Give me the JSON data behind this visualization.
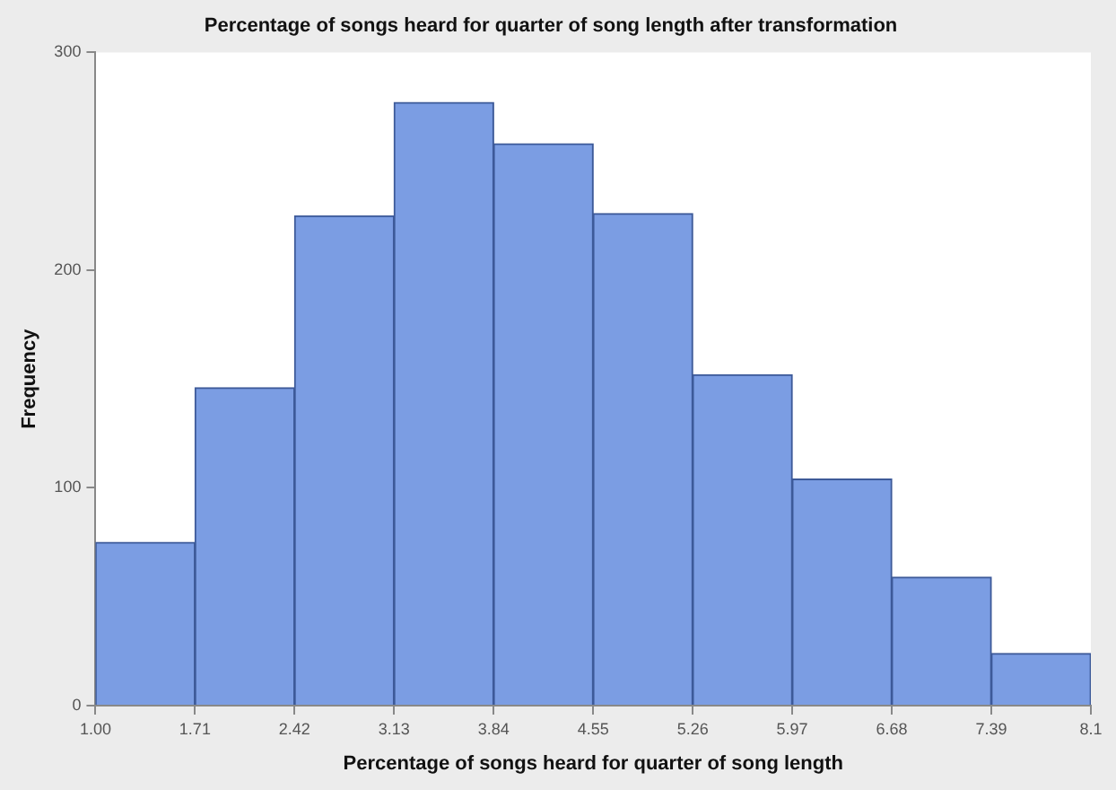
{
  "chart_data": {
    "type": "histogram",
    "title": "Percentage of songs heard for quarter of song length after transformation",
    "xlabel": "Percentage of songs heard for quarter of song length",
    "ylabel": "Frequency",
    "bins": [
      1.0,
      1.71,
      2.42,
      3.13,
      3.84,
      4.55,
      5.26,
      5.97,
      6.68,
      7.39,
      8.1
    ],
    "values": [
      75,
      146,
      225,
      277,
      258,
      226,
      152,
      104,
      59,
      24
    ],
    "color": "#7b9de3",
    "xlim": [
      1.0,
      8.1
    ],
    "xticks": [
      {
        "value": 1.0,
        "label": "1.00"
      },
      1.71,
      2.42,
      3.13,
      3.84,
      4.55,
      5.26,
      5.97,
      6.68,
      7.39,
      8.1
    ],
    "ylim": [
      0,
      300
    ],
    "yticks": [
      0,
      100,
      200,
      300
    ],
    "grid": false,
    "legend": false
  }
}
